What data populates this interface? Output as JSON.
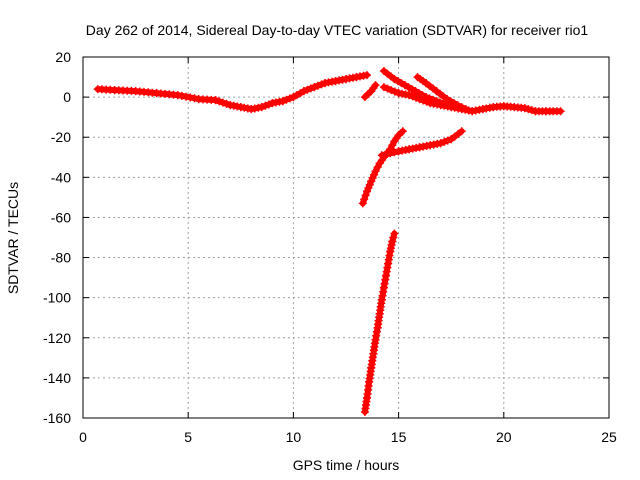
{
  "chart_data": {
    "type": "scatter",
    "title": "Day 262 of 2014, Sidereal Day-to-day VTEC variation (SDTVAR) for receiver rio1",
    "xlabel": "GPS time / hours",
    "ylabel": "SDTVAR / TECUs",
    "xlim": [
      0,
      25
    ],
    "ylim": [
      -160,
      20
    ],
    "xticks": [
      0,
      5,
      10,
      15,
      20,
      25
    ],
    "yticks": [
      20,
      0,
      -20,
      -40,
      -60,
      -80,
      -100,
      -120,
      -140,
      -160
    ],
    "grid": true,
    "marker": "plus",
    "color": "#ff0000",
    "series": [
      {
        "values": [
          [
            0.7,
            4
          ],
          [
            1.5,
            3.5
          ],
          [
            2.5,
            3
          ],
          [
            3.5,
            2
          ],
          [
            4.5,
            1
          ],
          [
            5.5,
            -1
          ],
          [
            6.3,
            -1.5
          ],
          [
            7,
            -4
          ],
          [
            7.5,
            -5
          ],
          [
            8,
            -6
          ],
          [
            8.5,
            -5
          ],
          [
            9,
            -3
          ],
          [
            9.5,
            -2
          ],
          [
            10,
            0
          ],
          [
            10.5,
            3
          ],
          [
            11,
            5
          ],
          [
            11.5,
            7
          ],
          [
            12,
            8
          ],
          [
            12.5,
            9
          ],
          [
            13,
            10
          ],
          [
            13.5,
            11
          ]
        ]
      },
      {
        "values": [
          [
            13.4,
            0
          ],
          [
            13.7,
            3
          ],
          [
            13.9,
            6
          ]
        ]
      },
      {
        "values": [
          [
            14.3,
            5
          ],
          [
            15,
            2
          ],
          [
            15.5,
            1
          ],
          [
            16,
            -1
          ],
          [
            16.5,
            -3
          ],
          [
            17,
            -4
          ],
          [
            17.5,
            -5
          ],
          [
            18,
            -6
          ],
          [
            18.5,
            -7
          ],
          [
            19,
            -6
          ],
          [
            19.5,
            -5
          ],
          [
            20,
            -4.5
          ],
          [
            20.5,
            -5
          ],
          [
            21,
            -5.5
          ],
          [
            21.5,
            -7
          ],
          [
            22,
            -7
          ],
          [
            22.7,
            -7
          ]
        ]
      },
      {
        "values": [
          [
            14.3,
            13
          ],
          [
            14.8,
            9
          ],
          [
            15.3,
            6
          ],
          [
            15.8,
            3
          ],
          [
            16.3,
            0
          ],
          [
            16.8,
            -2
          ],
          [
            17.3,
            -4
          ],
          [
            17.8,
            -5
          ]
        ]
      },
      {
        "values": [
          [
            15.9,
            10
          ],
          [
            16.3,
            7
          ],
          [
            16.8,
            3
          ],
          [
            17.3,
            -1
          ],
          [
            17.8,
            -4
          ],
          [
            18.2,
            -6
          ]
        ]
      },
      {
        "values": [
          [
            13.3,
            -53
          ],
          [
            13.5,
            -47
          ],
          [
            13.7,
            -42
          ],
          [
            13.9,
            -37
          ],
          [
            14.1,
            -33
          ],
          [
            14.3,
            -30
          ],
          [
            14.6,
            -26
          ],
          [
            14.8,
            -22
          ],
          [
            15,
            -19
          ],
          [
            15.2,
            -17
          ]
        ]
      },
      {
        "values": [
          [
            14.2,
            -29
          ],
          [
            15,
            -27
          ],
          [
            15.5,
            -26
          ],
          [
            16,
            -25
          ],
          [
            16.5,
            -24
          ],
          [
            17,
            -23
          ],
          [
            17.5,
            -21
          ],
          [
            18,
            -17
          ]
        ]
      },
      {
        "values": [
          [
            13.4,
            -157
          ],
          [
            13.5,
            -150
          ],
          [
            13.6,
            -142
          ],
          [
            13.7,
            -135
          ],
          [
            13.8,
            -128
          ],
          [
            13.9,
            -121
          ],
          [
            14,
            -115
          ],
          [
            14.1,
            -108
          ],
          [
            14.2,
            -101
          ],
          [
            14.3,
            -95
          ],
          [
            14.4,
            -89
          ],
          [
            14.5,
            -83
          ],
          [
            14.6,
            -77
          ],
          [
            14.7,
            -72
          ],
          [
            14.8,
            -68
          ]
        ]
      }
    ]
  }
}
